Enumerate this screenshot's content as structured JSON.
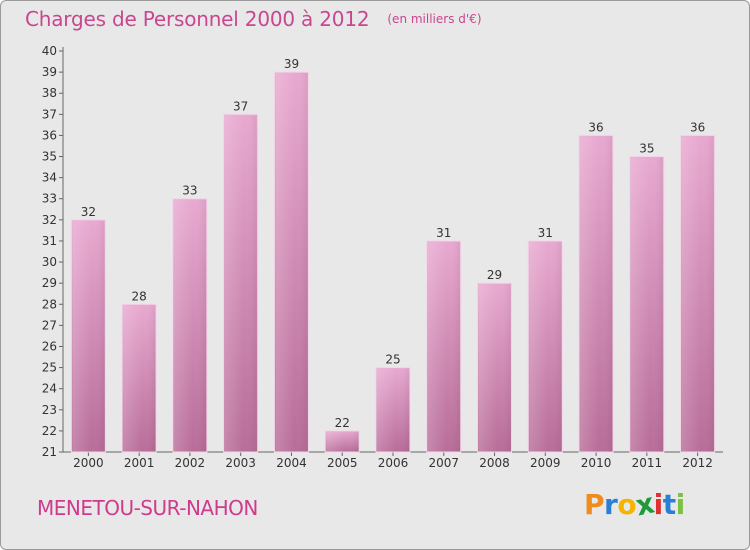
{
  "chart_data": {
    "type": "bar",
    "title": "Charges de Personnel 2000 à 2012",
    "subtitle": "(en milliers d'€)",
    "categories": [
      "2000",
      "2001",
      "2002",
      "2003",
      "2004",
      "2005",
      "2006",
      "2007",
      "2008",
      "2009",
      "2010",
      "2011",
      "2012"
    ],
    "values": [
      32,
      28,
      33,
      37,
      39,
      22,
      25,
      31,
      29,
      31,
      36,
      35,
      36
    ],
    "ylim": [
      21,
      40
    ],
    "yticks": [
      21,
      22,
      23,
      24,
      25,
      26,
      27,
      28,
      29,
      30,
      31,
      32,
      33,
      34,
      35,
      36,
      37,
      38,
      39,
      40
    ],
    "grid": false,
    "bar_color": "#d989b8",
    "xlabel": "",
    "ylabel": ""
  },
  "place_name": "MENETOU-SUR-NAHON",
  "logo": {
    "letters": [
      "P",
      "r",
      "o",
      "x",
      "i",
      "t",
      "i"
    ],
    "colors": [
      "#f08c1e",
      "#2a7fd4",
      "#f4b400",
      "#1e9a3a",
      "#e03030",
      "#2a7fd4",
      "#7cc242"
    ]
  }
}
